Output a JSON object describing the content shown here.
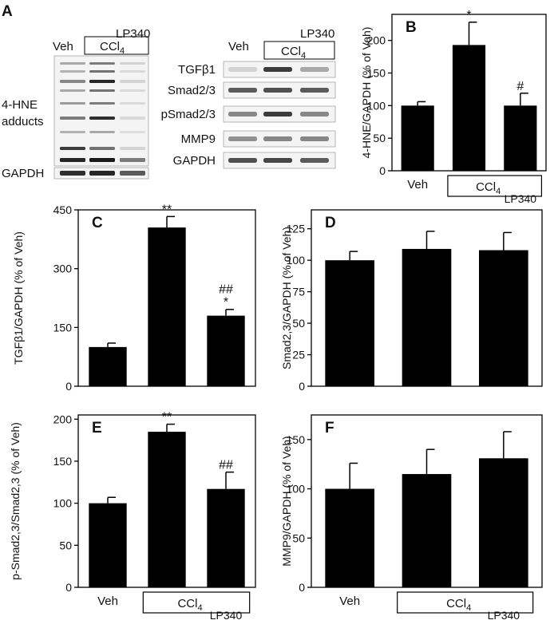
{
  "blots": {
    "letter": "A",
    "left": {
      "lp340_label": "LP340",
      "veh_label": "Veh",
      "ccl4_label": "CCl",
      "ccl4_sub": "4",
      "row_labels": [
        "4-HNE",
        "adducts"
      ],
      "gapdh_label": "GAPDH"
    },
    "right": {
      "lp340_label": "LP340",
      "veh_label": "Veh",
      "ccl4_label": "CCl",
      "ccl4_sub": "4",
      "rows": [
        "TGFβ1",
        "Smad2/3",
        "pSmad2/3",
        "MMP9",
        "GAPDH"
      ]
    }
  },
  "group_labels": {
    "veh": "Veh",
    "ccl4": "CCl",
    "ccl4_sub": "4",
    "lp340": "LP340"
  },
  "chart_data": [
    {
      "id": "B",
      "letter": "B",
      "type": "bar",
      "categories": [
        "Veh",
        "CCl4",
        "CCl4 + LP340"
      ],
      "values": [
        100,
        193,
        100
      ],
      "errors": [
        6,
        35,
        19
      ],
      "annotations": [
        [
          "",
          ""
        ],
        [
          "",
          "*"
        ],
        [
          "",
          "#"
        ]
      ],
      "ylabel": "4-HNE/GAPDH (% of Veh)",
      "yticks": [
        "0",
        "50",
        "100",
        "150",
        "200"
      ],
      "ylim": [
        0,
        240
      ],
      "show_group_labels": true
    },
    {
      "id": "C",
      "letter": "C",
      "type": "bar",
      "categories": [
        "Veh",
        "CCl4",
        "CCl4 + LP340"
      ],
      "values": [
        100,
        405,
        180
      ],
      "errors": [
        10,
        28,
        16
      ],
      "annotations": [
        [
          "",
          ""
        ],
        [
          "",
          "**"
        ],
        [
          "##",
          "*"
        ]
      ],
      "ylabel": "TGFβ1/GAPDH (% of Veh)",
      "yticks": [
        "0",
        "150",
        "300",
        "450"
      ],
      "ylim": [
        0,
        450
      ],
      "show_group_labels": false
    },
    {
      "id": "D",
      "letter": "D",
      "type": "bar",
      "categories": [
        "Veh",
        "CCl4",
        "CCl4 + LP340"
      ],
      "values": [
        100,
        109,
        108
      ],
      "errors": [
        7,
        14,
        14
      ],
      "annotations": [
        [
          "",
          ""
        ],
        [
          "",
          ""
        ],
        [
          "",
          ""
        ]
      ],
      "ylabel": "Smad2,3/GAPDH (% of Veh)",
      "yticks": [
        "0",
        "25",
        "50",
        "75",
        "100",
        "125"
      ],
      "ylim": [
        0,
        140
      ],
      "show_group_labels": false
    },
    {
      "id": "E",
      "letter": "E",
      "type": "bar",
      "categories": [
        "Veh",
        "CCl4",
        "CCl4 + LP340"
      ],
      "values": [
        100,
        185,
        117
      ],
      "errors": [
        7,
        9,
        20
      ],
      "annotations": [
        [
          "",
          ""
        ],
        [
          "",
          "**"
        ],
        [
          "",
          "##"
        ]
      ],
      "ylabel": "p-Smad2,3/Smad2,3 (% of Veh)",
      "yticks": [
        "0",
        "50",
        "100",
        "150",
        "200"
      ],
      "ylim": [
        0,
        205
      ],
      "show_group_labels": true
    },
    {
      "id": "F",
      "letter": "F",
      "type": "bar",
      "categories": [
        "Veh",
        "CCl4",
        "CCl4 + LP340"
      ],
      "values": [
        100,
        115,
        131
      ],
      "errors": [
        26,
        25,
        27
      ],
      "annotations": [
        [
          "",
          ""
        ],
        [
          "",
          ""
        ],
        [
          "",
          ""
        ]
      ],
      "ylabel": "MMP9/GAPDH (% of Veh)",
      "yticks": [
        "0",
        "50",
        "100",
        "150"
      ],
      "ylim": [
        0,
        175
      ],
      "show_group_labels": true
    }
  ],
  "colors": {
    "bar": "#000000",
    "axis": "#000000",
    "band": "#1a1a1a",
    "blot_bg": "#f4f4f4"
  }
}
